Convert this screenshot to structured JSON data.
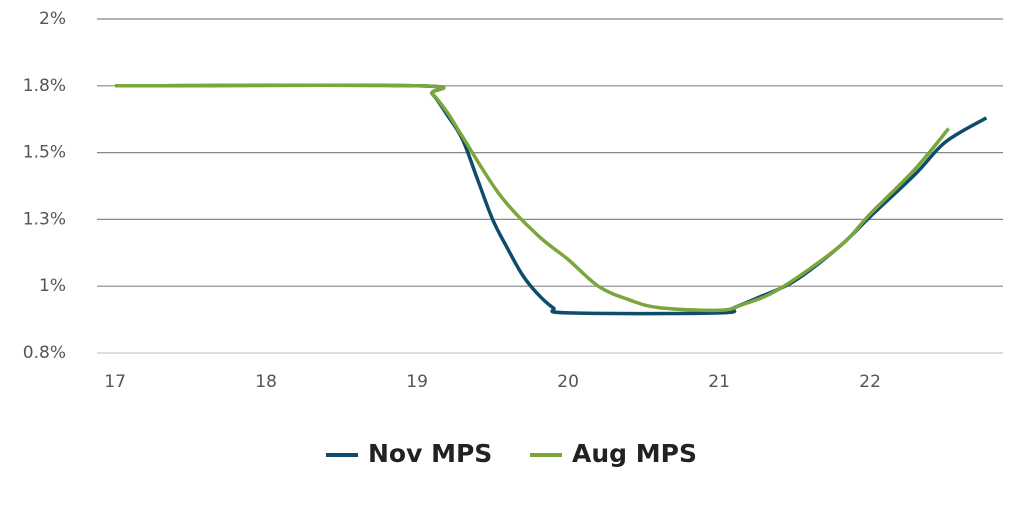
{
  "chart_data": {
    "type": "line",
    "xlim": [
      16.88,
      22.88
    ],
    "xticks": [
      17,
      18,
      19,
      20,
      21,
      22
    ],
    "ylim": [
      0.75,
      2
    ],
    "yticks": [
      {
        "value": 0.75,
        "label": "0.8%"
      },
      {
        "value": 1,
        "label": "1%"
      },
      {
        "value": 1.25,
        "label": "1.3%"
      },
      {
        "value": 1.5,
        "label": "1.5%"
      },
      {
        "value": 1.75,
        "label": "1.8%"
      },
      {
        "value": 2,
        "label": "2%"
      }
    ],
    "grid": true,
    "legend": "bottom",
    "series": [
      {
        "name": "Nov MPS",
        "color": "#0f4c6b",
        "x": [
          17,
          19,
          19.1,
          19.2,
          19.3,
          19.4,
          19.5,
          19.6,
          19.7,
          19.8,
          19.9,
          20,
          21,
          21.1,
          21.27,
          21.5,
          21.8,
          22,
          22.3,
          22.5,
          22.77
        ],
        "values": [
          1.75,
          1.75,
          1.72,
          1.64,
          1.55,
          1.4,
          1.25,
          1.14,
          1.04,
          0.97,
          0.92,
          0.9,
          0.9,
          0.92,
          0.96,
          1.02,
          1.15,
          1.26,
          1.42,
          1.54,
          1.63
        ]
      },
      {
        "name": "Aug MPS",
        "color": "#7aa63c",
        "x": [
          17,
          19,
          19.1,
          19.2,
          19.3,
          19.55,
          19.8,
          20,
          20.2,
          20.4,
          20.6,
          21,
          21.15,
          21.4,
          21.8,
          22,
          22.3,
          22.52
        ],
        "values": [
          1.75,
          1.75,
          1.72,
          1.65,
          1.56,
          1.34,
          1.19,
          1.1,
          1,
          0.95,
          0.92,
          0.91,
          0.93,
          0.99,
          1.15,
          1.27,
          1.44,
          1.59
        ]
      }
    ]
  }
}
